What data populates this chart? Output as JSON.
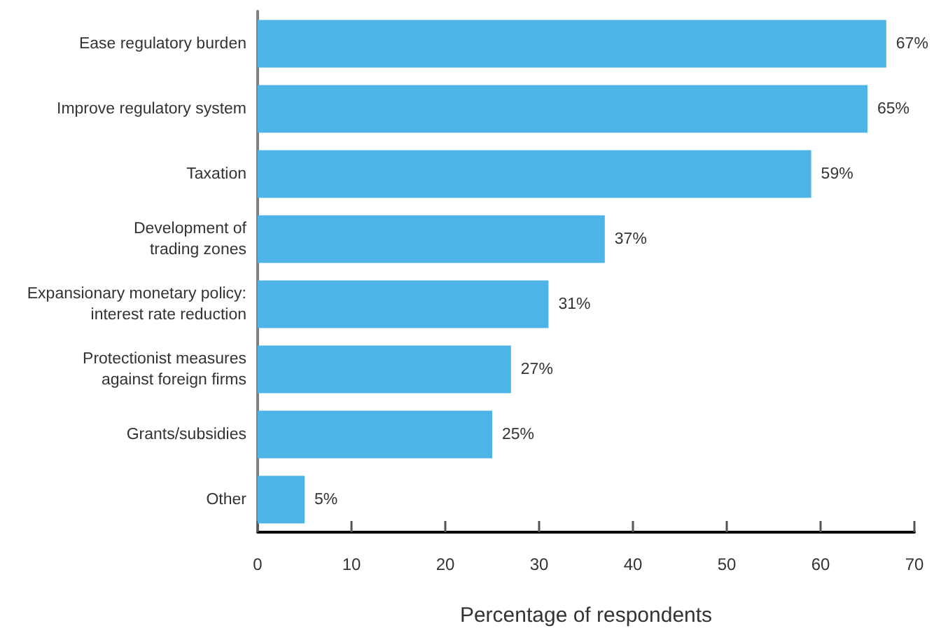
{
  "chart_data": {
    "type": "bar",
    "orientation": "horizontal",
    "categories": [
      "Ease regulatory burden",
      "Improve regulatory system",
      "Taxation",
      "Development of\ntrading zones",
      "Expansionary monetary policy:\ninterest rate reduction",
      "Protectionist measures\nagainst foreign firms",
      "Grants/subsidies",
      "Other"
    ],
    "values": [
      67,
      65,
      59,
      37,
      31,
      27,
      25,
      5
    ],
    "value_labels": [
      "67%",
      "65%",
      "59%",
      "37%",
      "31%",
      "27%",
      "25%",
      "5%"
    ],
    "color": "#4db5e6",
    "xlabel": "Percentage of respondents",
    "xlim": [
      0,
      70
    ],
    "xticks": [
      0,
      10,
      20,
      30,
      40,
      50,
      60,
      70
    ]
  }
}
